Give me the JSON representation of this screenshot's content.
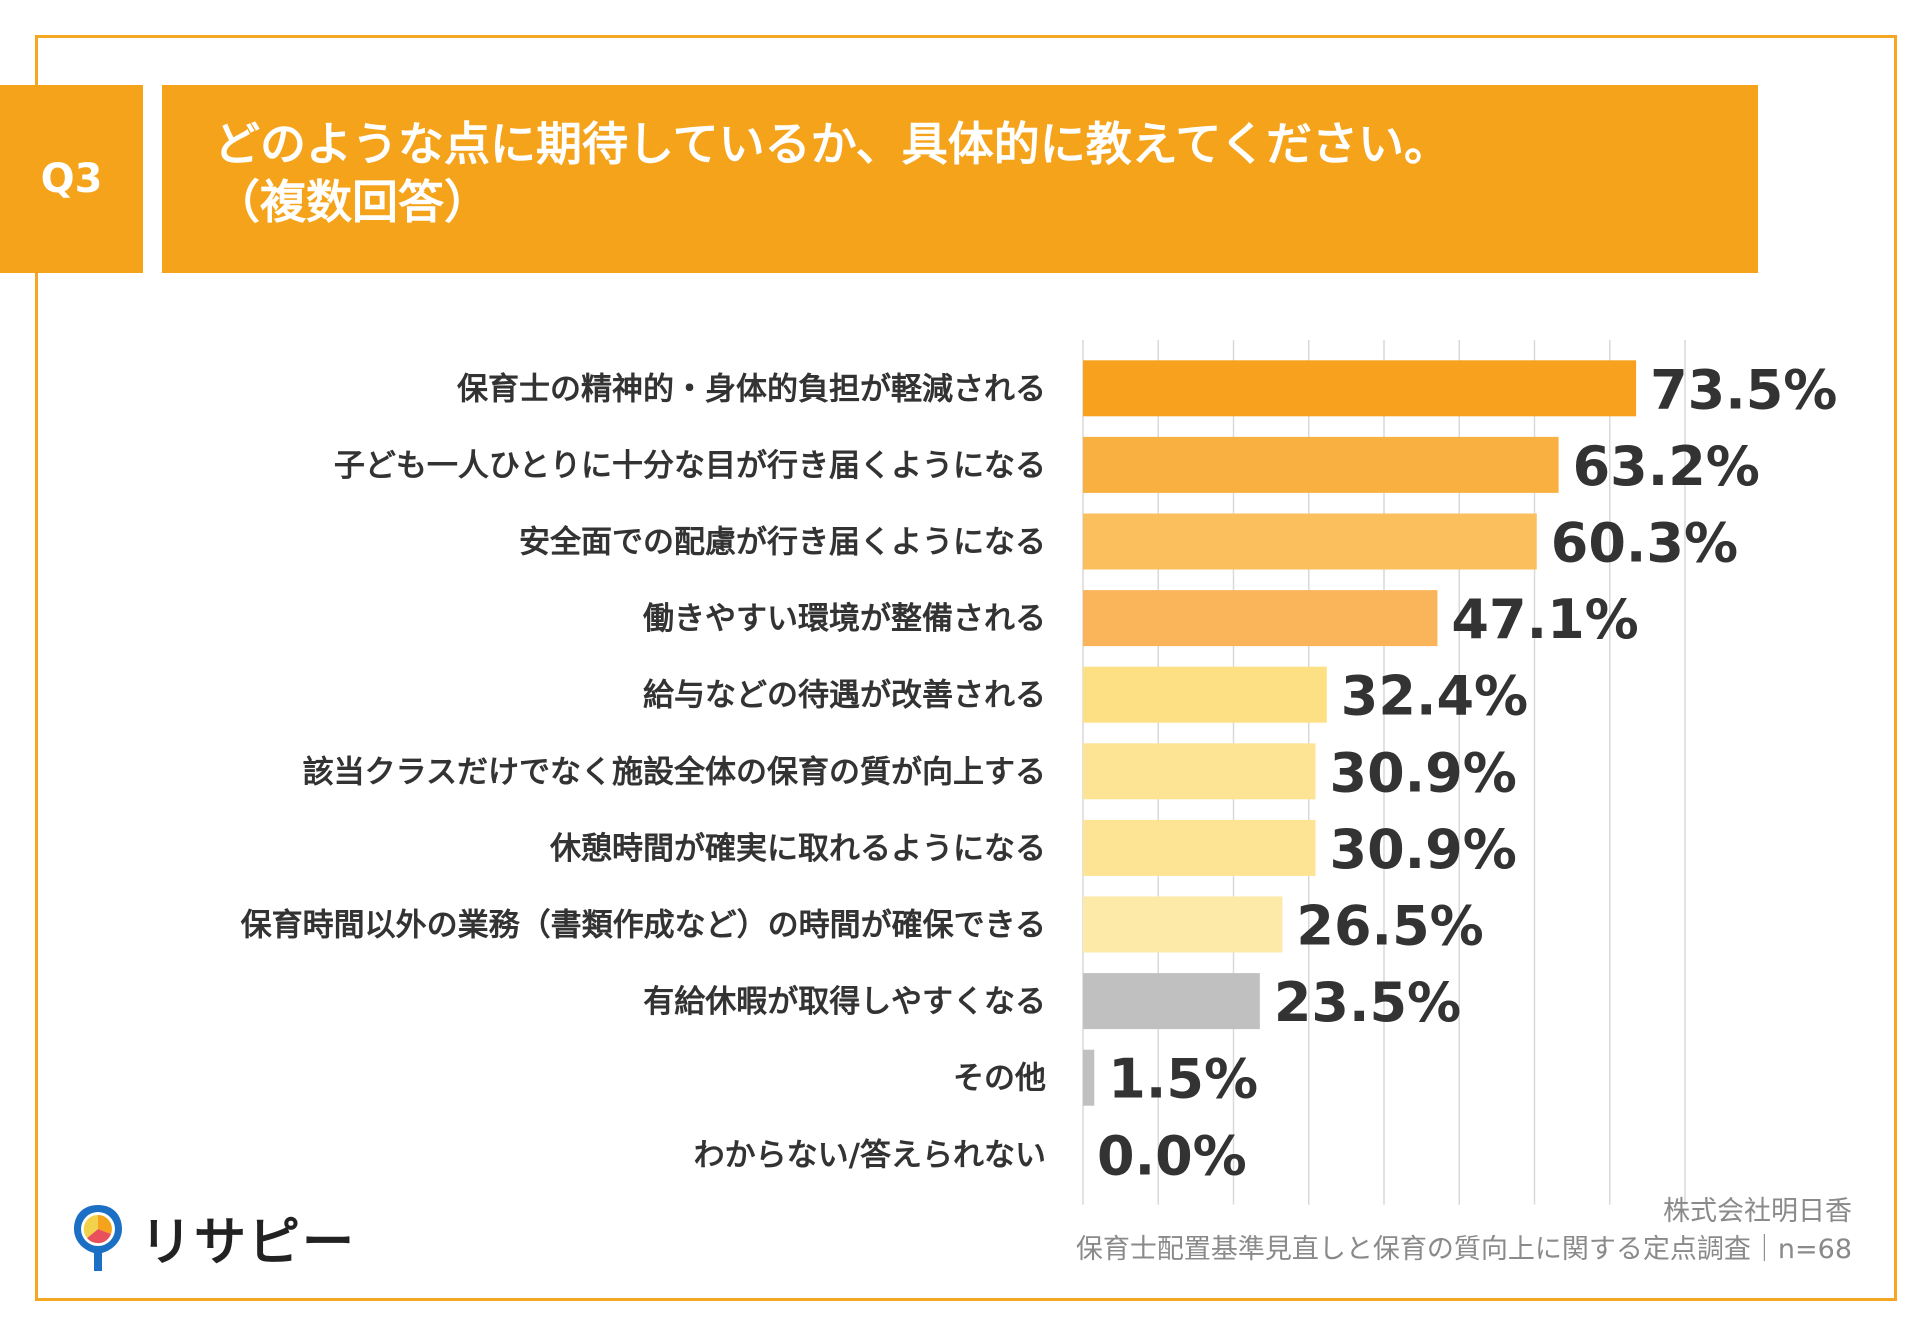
{
  "header": {
    "badge": "Q3",
    "title_line1": "どのような点に期待しているか、具体的に教えてください。",
    "title_line2": "（複数回答）",
    "color": "#f5a31a"
  },
  "chart_data": {
    "type": "bar",
    "orientation": "horizontal",
    "categories": [
      "保育士の精神的・身体的負担が軽減される",
      "子ども一人ひとりに十分な目が行き届くようになる",
      "安全面での配慮が行き届くようになる",
      "働きやすい環境が整備される",
      "給与などの待遇が改善される",
      "該当クラスだけでなく施設全体の保育の質が向上する",
      "休憩時間が確実に取れるようになる",
      "保育時間以外の業務（書類作成など）の時間が確保できる",
      "有給休暇が取得しやすくなる",
      "その他",
      "わからない/答えられない"
    ],
    "values": [
      73.5,
      63.2,
      60.3,
      47.1,
      32.4,
      30.9,
      30.9,
      26.5,
      23.5,
      1.5,
      0.0
    ],
    "value_labels": [
      "73.5%",
      "63.2%",
      "60.3%",
      "47.1%",
      "32.4%",
      "30.9%",
      "30.9%",
      "26.5%",
      "23.5%",
      "1.5%",
      "0.0%"
    ],
    "colors": [
      "#f7a11e",
      "#f9b040",
      "#fbbf5d",
      "#fab55a",
      "#fde084",
      "#fde494",
      "#fde494",
      "#feeaa8",
      "#c0c0c0",
      "#c0c0c0",
      "#c0c0c0"
    ],
    "xlim": [
      0,
      80
    ],
    "grid": true,
    "grid_step": 10
  },
  "footer": {
    "brand": "リサピー",
    "company": "株式会社明日香",
    "survey": "保育士配置基準見直しと保育の質向上に関する定点調査｜n=68"
  }
}
